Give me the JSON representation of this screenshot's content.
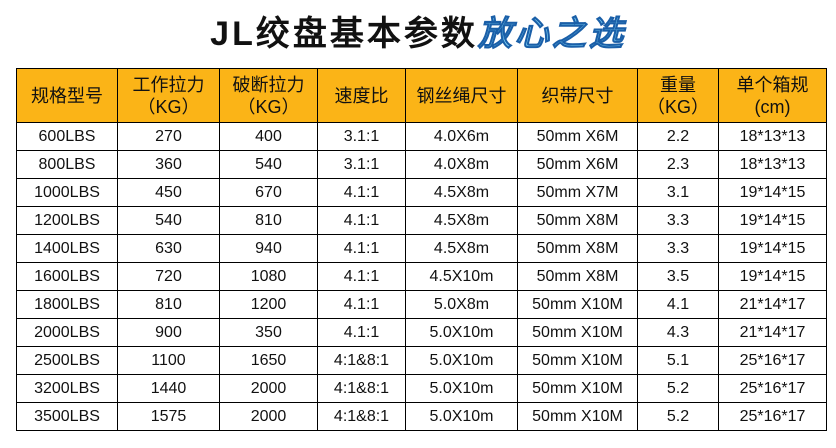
{
  "title": {
    "main": "JL绞盘基本参数",
    "accent": "放心之选"
  },
  "table": {
    "header": [
      [
        "规格型号"
      ],
      [
        "工作拉力",
        "（KG）"
      ],
      [
        "破断拉力",
        "（KG）"
      ],
      [
        "速度比"
      ],
      [
        "钢丝绳尺寸"
      ],
      [
        "织带尺寸"
      ],
      [
        "重量",
        "（KG）"
      ],
      [
        "单个箱规",
        "(cm)"
      ]
    ],
    "rows": [
      [
        "600LBS",
        "270",
        "400",
        "3.1:1",
        "4.0X6m",
        "50mm X6M",
        "2.2",
        "18*13*13"
      ],
      [
        "800LBS",
        "360",
        "540",
        "3.1:1",
        "4.0X8m",
        "50mm X6M",
        "2.3",
        "18*13*13"
      ],
      [
        "1000LBS",
        "450",
        "670",
        "4.1:1",
        "4.5X8m",
        "50mm X7M",
        "3.1",
        "19*14*15"
      ],
      [
        "1200LBS",
        "540",
        "810",
        "4.1:1",
        "4.5X8m",
        "50mm X8M",
        "3.3",
        "19*14*15"
      ],
      [
        "1400LBS",
        "630",
        "940",
        "4.1:1",
        "4.5X8m",
        "50mm X8M",
        "3.3",
        "19*14*15"
      ],
      [
        "1600LBS",
        "720",
        "1080",
        "4.1:1",
        "4.5X10m",
        "50mm X8M",
        "3.5",
        "19*14*15"
      ],
      [
        "1800LBS",
        "810",
        "1200",
        "4.1:1",
        "5.0X8m",
        "50mm X10M",
        "4.1",
        "21*14*17"
      ],
      [
        "2000LBS",
        "900",
        "350",
        "4.1:1",
        "5.0X10m",
        "50mm X10M",
        "4.3",
        "21*14*17"
      ],
      [
        "2500LBS",
        "1100",
        "1650",
        "4:1&8:1",
        "5.0X10m",
        "50mm X10M",
        "5.1",
        "25*16*17"
      ],
      [
        "3200LBS",
        "1440",
        "2000",
        "4:1&8:1",
        "5.0X10m",
        "50mm X10M",
        "5.2",
        "25*16*17"
      ],
      [
        "3500LBS",
        "1575",
        "2000",
        "4:1&8:1",
        "5.0X10m",
        "50mm X10M",
        "5.2",
        "25*16*17"
      ]
    ]
  }
}
